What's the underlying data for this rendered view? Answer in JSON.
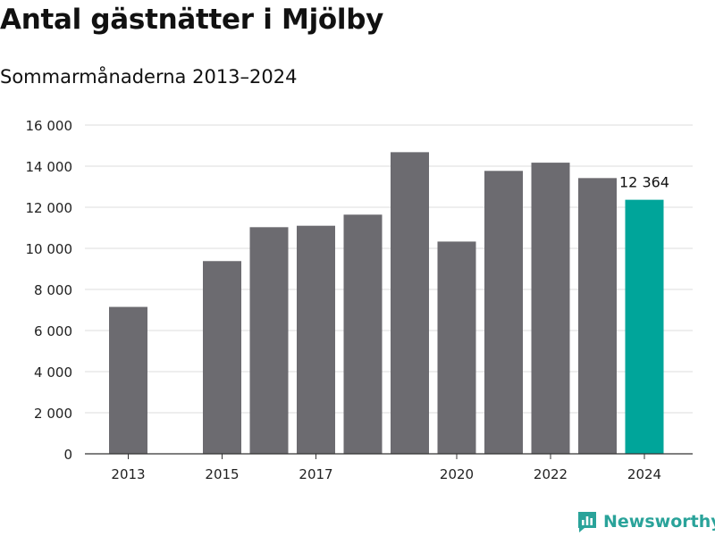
{
  "chart_data": {
    "type": "bar",
    "title": "Antal gästnätter i Mjölby",
    "subtitle": "Sommarmånaderna 2013–2024",
    "categories": [
      "2013",
      "2014",
      "2015",
      "2016",
      "2017",
      "2018",
      "2019",
      "2020",
      "2021",
      "2022",
      "2023",
      "2024"
    ],
    "x_tick_labels": [
      "2013",
      "",
      "2015",
      "",
      "2017",
      "",
      "",
      "2020",
      "",
      "2022",
      "",
      "2024"
    ],
    "values": [
      7150,
      null,
      9380,
      11030,
      11100,
      11640,
      14680,
      10330,
      13770,
      14170,
      13420,
      12364
    ],
    "highlight_index": 11,
    "highlight_label": "12 364",
    "y_ticks": [
      "0",
      "2 000",
      "4 000",
      "6 000",
      "8 000",
      "10 000",
      "12 000",
      "14 000",
      "16 000"
    ],
    "ylim": [
      0,
      16000
    ],
    "grid": true,
    "colors": {
      "bar": "#6c6b70",
      "highlight": "#00a59a",
      "grid": "#dddddd",
      "axis": "#333333"
    }
  },
  "branding": {
    "logo_text": "Newsworthy",
    "logo_color": "#2aa39a",
    "logo_icon": "bar-chart-chat-icon"
  }
}
